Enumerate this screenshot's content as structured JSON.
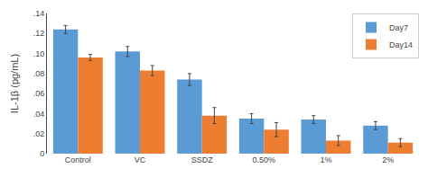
{
  "chart_data": {
    "type": "bar",
    "categories": [
      "Control",
      "VC",
      "SSDZ",
      "0.50%",
      "1%",
      "2%"
    ],
    "series": [
      {
        "name": "Day7",
        "color": "#5B9BD5",
        "values": [
          0.124,
          0.102,
          0.074,
          0.035,
          0.034,
          0.028
        ],
        "errors": [
          0.004,
          0.005,
          0.006,
          0.005,
          0.004,
          0.004
        ]
      },
      {
        "name": "Day14",
        "color": "#ED7D31",
        "values": [
          0.096,
          0.083,
          0.038,
          0.024,
          0.013,
          0.011
        ],
        "errors": [
          0.003,
          0.005,
          0.008,
          0.007,
          0.005,
          0.004
        ]
      }
    ],
    "ylabel": "IL-1β (pg/mL)",
    "ylim": [
      0,
      0.14
    ],
    "yticks": [
      0,
      {
        "value": 0.02,
        "label": ".02"
      },
      {
        "value": 0.04,
        "label": ".04"
      },
      {
        "value": 0.06,
        "label": ".06"
      },
      {
        "value": 0.08,
        "label": ".08"
      },
      {
        "value": 0.1,
        "label": ".10"
      },
      {
        "value": 0.12,
        "label": ".12"
      },
      {
        "value": 0.14,
        "label": ".14"
      }
    ],
    "grid": false,
    "legend": "upper right"
  }
}
